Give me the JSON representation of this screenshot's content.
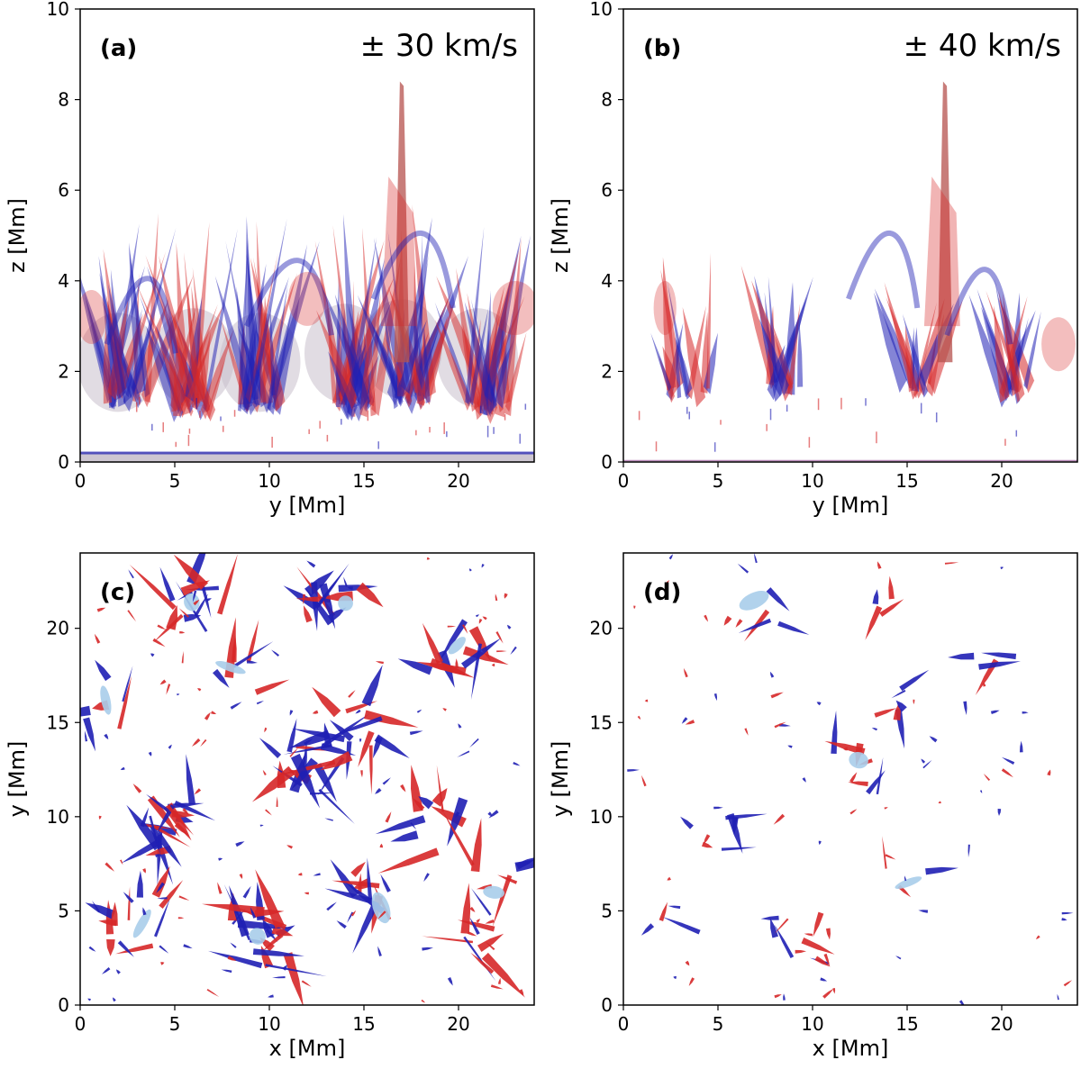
{
  "chart_data": [
    {
      "type": "contour",
      "panel_label": "(a)",
      "annotation": "± 30 km/s",
      "xlabel": "y [Mm]",
      "ylabel": "z [Mm]",
      "xlim": [
        0,
        24
      ],
      "ylim": [
        0,
        10
      ],
      "xticks": [
        "0",
        "5",
        "10",
        "15",
        "20"
      ],
      "yticks": [
        "0",
        "2",
        "4",
        "6",
        "8",
        "10"
      ],
      "colors": {
        "positive": "#d62728",
        "negative": "#1f1fb4",
        "overlap": "#c8c0cc"
      },
      "threshold_kms": 30,
      "view": "side"
    },
    {
      "type": "contour",
      "panel_label": "(b)",
      "annotation": "± 40 km/s",
      "xlabel": "y [Mm]",
      "ylabel": "z [Mm]",
      "xlim": [
        0,
        24
      ],
      "ylim": [
        0,
        10
      ],
      "xticks": [
        "0",
        "5",
        "10",
        "15",
        "20"
      ],
      "yticks": [
        "0",
        "2",
        "4",
        "6",
        "8",
        "10"
      ],
      "colors": {
        "positive": "#d62728",
        "negative": "#1f1fb4",
        "overlap": "#a9cdea"
      },
      "threshold_kms": 40,
      "view": "side"
    },
    {
      "type": "contour",
      "panel_label": "(c)",
      "annotation": "",
      "xlabel": "x [Mm]",
      "ylabel": "y [Mm]",
      "xlim": [
        0,
        24
      ],
      "ylim": [
        0,
        24
      ],
      "xticks": [
        "0",
        "5",
        "10",
        "15",
        "20"
      ],
      "yticks": [
        "0",
        "5",
        "10",
        "15",
        "20"
      ],
      "colors": {
        "positive": "#d62728",
        "negative": "#1f1fb4",
        "overlap": "#a9cdea"
      },
      "threshold_kms": 30,
      "view": "top"
    },
    {
      "type": "contour",
      "panel_label": "(d)",
      "annotation": "",
      "xlabel": "x [Mm]",
      "ylabel": "y [Mm]",
      "xlim": [
        0,
        24
      ],
      "ylim": [
        0,
        24
      ],
      "xticks": [
        "0",
        "5",
        "10",
        "15",
        "20"
      ],
      "yticks": [
        "0",
        "5",
        "10",
        "15",
        "20"
      ],
      "colors": {
        "positive": "#d62728",
        "negative": "#1f1fb4",
        "overlap": "#a9cdea"
      },
      "threshold_kms": 40,
      "view": "top"
    }
  ]
}
